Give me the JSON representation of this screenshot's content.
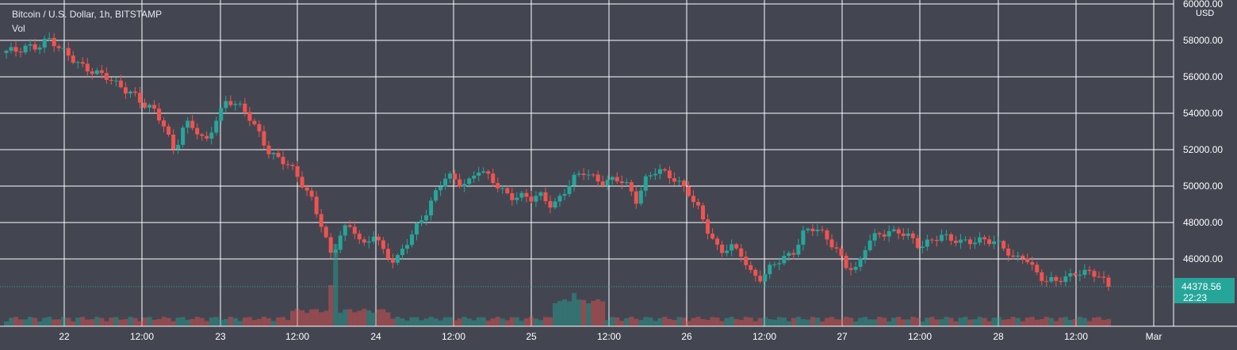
{
  "header": {
    "symbol_title": "Bitcoin / U.S. Dollar, 1h, BITSTAMP",
    "volume_label": "Vol"
  },
  "price_scale": {
    "currency": "USD",
    "tick_labels": [
      "60000.00",
      "58000.00",
      "56000.00",
      "54000.00",
      "52000.00",
      "50000.00",
      "48000.00",
      "46000.00"
    ],
    "current_price": "44378.56",
    "countdown": "22:23"
  },
  "time_axis": {
    "tick_labels": [
      "22",
      "12:00",
      "23",
      "12:00",
      "24",
      "12:00",
      "25",
      "12:00",
      "26",
      "12:00",
      "27",
      "12:00",
      "28",
      "12:00",
      "Mar"
    ]
  },
  "colors": {
    "background": "#434651",
    "grid": "#ffffff",
    "up": "#26a69a",
    "down": "#ef5350",
    "axis_text": "#ffffff",
    "last_price_badge": "#26a69a"
  },
  "chart_data": {
    "type": "candlestick",
    "title": "Bitcoin / U.S. Dollar, 1h, BITSTAMP",
    "interval": "1h",
    "grid": true,
    "ylim": [
      43500,
      60000
    ],
    "x_ticks": [
      "22",
      "12:00",
      "23",
      "12:00",
      "24",
      "12:00",
      "25",
      "12:00",
      "26",
      "12:00",
      "27",
      "12:00",
      "28",
      "12:00",
      "Mar"
    ],
    "y_ticks": [
      60000,
      58000,
      56000,
      54000,
      52000,
      50000,
      48000,
      46000
    ],
    "last_price": 44378.56,
    "ohlc_anchor_closes": [
      57300,
      57400,
      57800,
      57700,
      58000,
      57500,
      57200,
      56800,
      56300,
      56000,
      55800,
      55500,
      55200,
      54400,
      54100,
      53400,
      52000,
      53500,
      53000,
      52300,
      53800,
      54800,
      54400,
      53800,
      53000,
      52000,
      51500,
      51000,
      50200,
      49500,
      48000,
      46000,
      47500,
      47800,
      46800,
      47400,
      46200,
      45700,
      46900,
      47800,
      48500,
      49600,
      50700,
      50300,
      50200,
      50800,
      50400,
      50000,
      49500,
      49400,
      49200,
      49500,
      49000,
      49600,
      50300,
      50700,
      50500,
      50300,
      50400,
      50000,
      49200,
      50600,
      51000,
      50500,
      50100,
      49700,
      48800,
      47300,
      46200,
      46700,
      46400,
      45200,
      44800,
      45600,
      46100,
      46500,
      47500,
      47600,
      47200,
      46700,
      45700,
      45300,
      46800,
      47400,
      47600,
      47500,
      47100,
      46600,
      47100,
      47400,
      47000,
      46800,
      47000,
      47200,
      47000,
      46500,
      45900,
      46300,
      45400,
      44700,
      44700,
      45000,
      45400,
      45300,
      45000,
      44400
    ]
  }
}
